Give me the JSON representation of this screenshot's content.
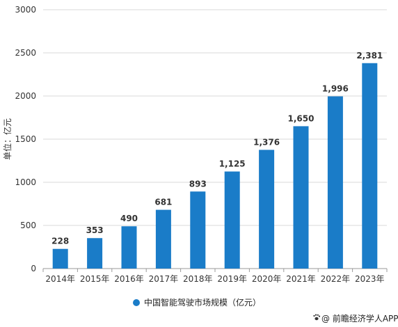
{
  "chart_data": {
    "type": "bar",
    "categories": [
      "2014年",
      "2015年",
      "2016年",
      "2017年",
      "2018年",
      "2019年",
      "2020年",
      "2021年",
      "2022年",
      "2023年"
    ],
    "series": [
      {
        "name": "中国智能驾驶市场规模（亿元）",
        "values": [
          228,
          353,
          490,
          681,
          893,
          1125,
          1376,
          1650,
          1996,
          2381
        ],
        "labels": [
          "228",
          "353",
          "490",
          "681",
          "893",
          "1,125",
          "1,376",
          "1,650",
          "1,996",
          "2,381"
        ]
      }
    ],
    "ylabel": "单位：亿元",
    "ylim": [
      0,
      3000
    ],
    "yticks": [
      "0",
      "500",
      "1000",
      "1500",
      "2000",
      "2500",
      "3000"
    ],
    "grid": true,
    "legend": "bottom"
  },
  "colors": {
    "bar": "#1a7cc8",
    "grid": "#d9d9d9"
  },
  "credit": {
    "text": "@ 前瞻经济学人APP",
    "icon": "paw-icon"
  }
}
